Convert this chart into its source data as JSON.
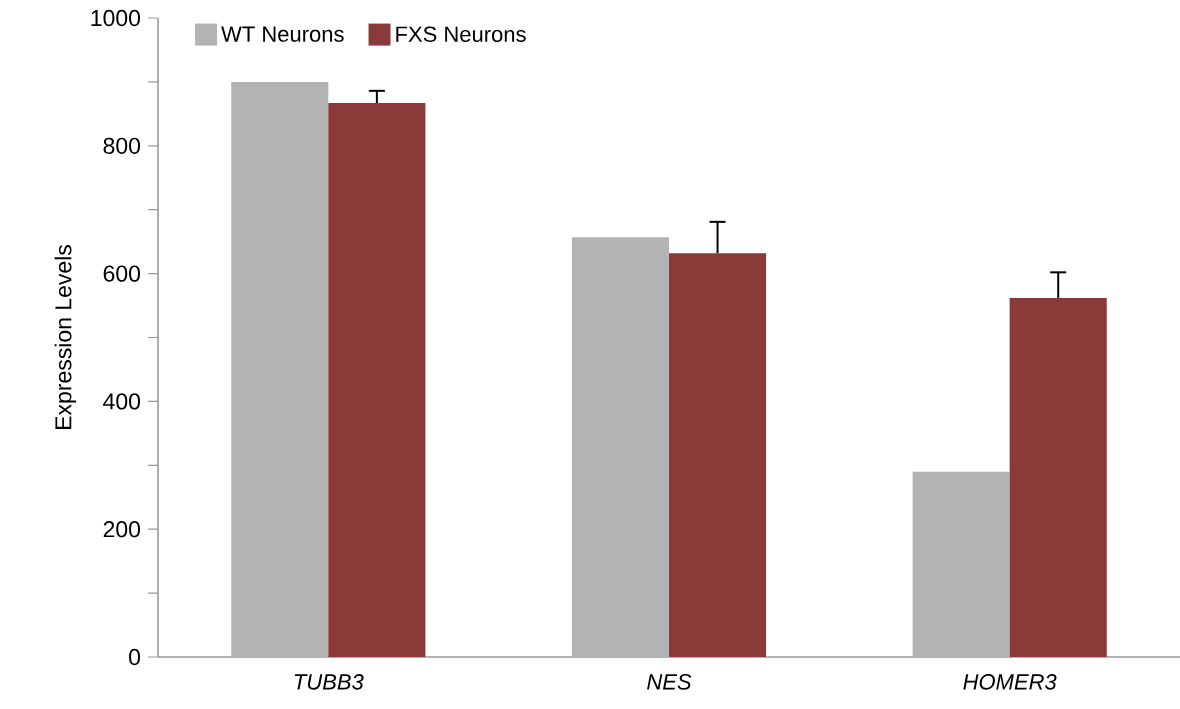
{
  "chart_data": {
    "type": "bar",
    "ylabel": "Expression Levels",
    "categories": [
      "TUBB3",
      "NES",
      "HOMER3"
    ],
    "series": [
      {
        "name": "WT Neurons",
        "color": "#b3b3b3",
        "values": [
          900,
          657,
          290
        ]
      },
      {
        "name": "FXS Neurons",
        "color": "#8b3a3a",
        "values": [
          867,
          632,
          562
        ],
        "errors": [
          [
            867,
            886
          ],
          [
            632,
            681
          ],
          [
            562,
            602
          ]
        ]
      }
    ],
    "ylim": [
      0,
      1000
    ],
    "yticks": [
      0,
      {
        "value": 100,
        "label": null
      },
      200,
      {
        "value": 300,
        "label": null
      },
      400,
      {
        "value": 500,
        "label": null
      },
      600,
      {
        "value": 700,
        "label": null
      },
      800,
      {
        "value": 900,
        "label": null
      },
      1000
    ],
    "legend": "top left",
    "grid": false
  }
}
